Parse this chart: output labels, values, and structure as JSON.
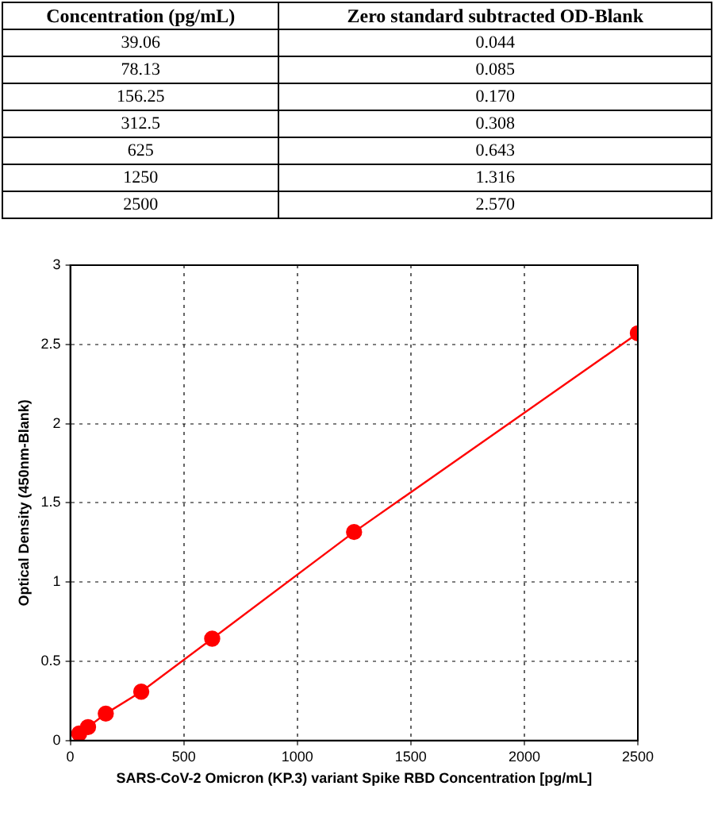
{
  "chart_data": [
    {
      "type": "other",
      "annotations": [
        "Concentration (pg/mL)",
        "Zero standard subtracted OD-Blank",
        "39.06",
        "0.044",
        "78.13",
        "0.085",
        "156.25",
        "0.170",
        "312.5",
        "0.308",
        "625",
        "0.643",
        "1250",
        "1.316",
        "2500",
        "2.570"
      ]
    },
    {
      "type": "line",
      "x": [
        39.06,
        78.13,
        156.25,
        312.5,
        625,
        1250,
        2500
      ],
      "series": [
        {
          "color": "#ff0000",
          "values": [
            0.044,
            0.085,
            0.17,
            0.308,
            0.643,
            1.316,
            2.57
          ]
        }
      ],
      "xlabel": "SARS-CoV-2 Omicron (KP.3) variant Spike RBD Concentration [pg/mL]",
      "ylabel": "Optical Density (450nm-Blank)",
      "xlim": [
        0,
        2500
      ],
      "xticks": [
        0,
        500,
        1000,
        1500,
        2000,
        2500
      ],
      "ylim": [
        0,
        3
      ],
      "yticks": [
        0,
        0.5,
        1,
        1.5,
        2,
        2.5,
        3
      ],
      "grid": true,
      "marker": "circle",
      "line_style": "solid"
    }
  ]
}
